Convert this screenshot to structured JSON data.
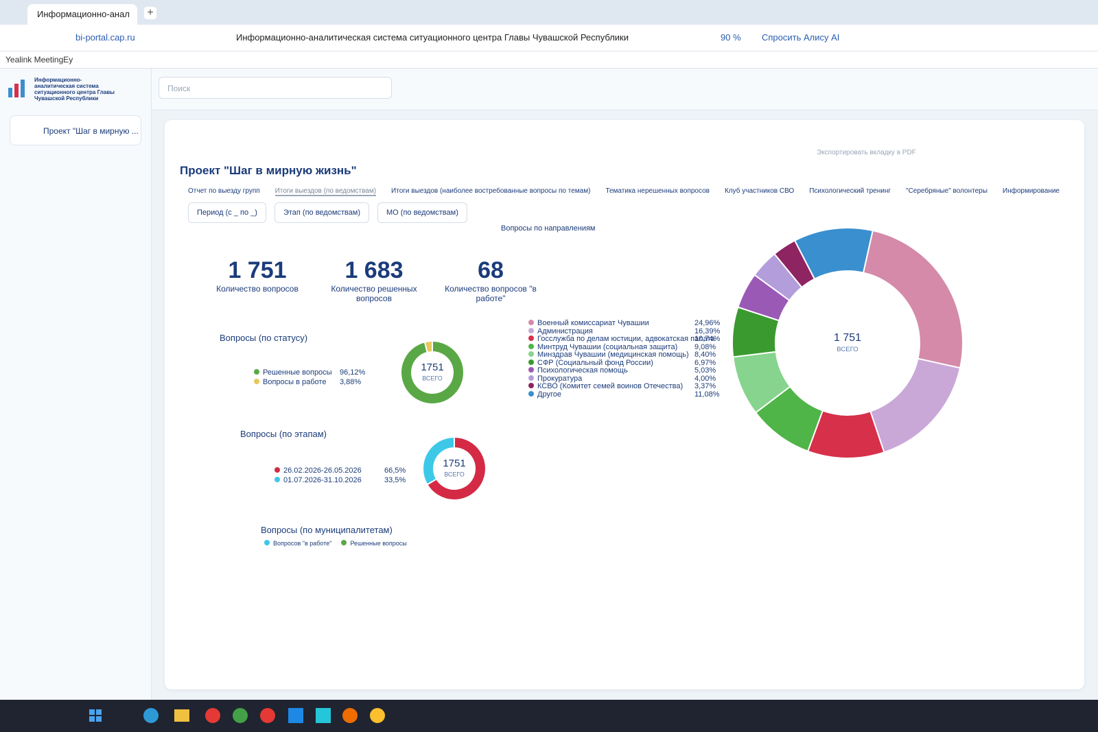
{
  "browser": {
    "tab_title": "Информационно-анал",
    "url": "bi-portal.cap.ru",
    "page_title": "Информационно-аналитическая система ситуационного центра Главы Чувашской Республики",
    "zoom": "90 %",
    "alice": "Спросить Алису AI",
    "bookmark": "Yealink MeetingEy"
  },
  "sidebar": {
    "logo_text": "Информационно-аналитическая система ситуационного центра Главы Чувашской Республики",
    "item": "Проект \"Шаг в мирную ..."
  },
  "search_placeholder": "Поиск",
  "dashboard": {
    "export": "Экспортировать вкладку в PDF",
    "title": "Проект \"Шаг в мирную жизнь\"",
    "tabs": [
      "Отчет по выезду групп",
      "Итоги выездов (по ведомствам)",
      "Итоги выездов (наиболее востребованные вопросы по темам)",
      "Тематика нерешенных вопросов",
      "Клуб участников СВО",
      "Психологический тренинг",
      "\"Серебряные\" волонтеры",
      "Информирование"
    ],
    "filters": [
      "Период (с _ по _)",
      "Этап (по ведомствам)",
      "МО (по ведомствам)"
    ],
    "kpis": [
      {
        "value": "1 751",
        "label": "Количество вопросов"
      },
      {
        "value": "1 683",
        "label": "Количество решенных вопросов"
      },
      {
        "value": "68",
        "label": "Количество вопросов \"в работе\""
      }
    ],
    "status": {
      "title": "Вопросы (по статусу)",
      "center_value": "1751",
      "center_label": "ВСЕГО",
      "items": [
        {
          "name": "Решенные вопросы",
          "value": 96.12,
          "label": "96,12%",
          "color": "#5aa845"
        },
        {
          "name": "Вопросы в работе",
          "value": 3.88,
          "label": "3,88%",
          "color": "#e6c85c"
        }
      ]
    },
    "stages": {
      "title": "Вопросы (по этапам)",
      "center_value": "1751",
      "center_label": "ВСЕГО",
      "items": [
        {
          "name": "26.02.2026-26.05.2026",
          "value": 66.5,
          "label": "66,5%",
          "color": "#d42a45"
        },
        {
          "name": "01.07.2026-31.10.2026",
          "value": 33.5,
          "label": "33,5%",
          "color": "#3ec8e8"
        }
      ]
    },
    "directions": {
      "title": "Вопросы по направлениям",
      "center_value": "1 751",
      "center_label": "ВСЕГО",
      "items": [
        {
          "name": "Военный комиссариат Чувашии",
          "value": 24.96,
          "label": "24,96%",
          "color": "#d48aa8"
        },
        {
          "name": "Администрация",
          "value": 16.39,
          "label": "16,39%",
          "color": "#c9a8d8"
        },
        {
          "name": "Госслужба по делам юстиции, адвокатская палата",
          "value": 10.74,
          "label": "10,74%",
          "color": "#d6304a"
        },
        {
          "name": "Минтруд Чувашии (социальная защита)",
          "value": 9.08,
          "label": "9,08%",
          "color": "#4fb548"
        },
        {
          "name": "Минздрав Чувашии (медицинская помощь)",
          "value": 8.4,
          "label": "8,40%",
          "color": "#86d48e"
        },
        {
          "name": "СФР (Социальный фонд России)",
          "value": 6.97,
          "label": "6,97%",
          "color": "#3a9a30"
        },
        {
          "name": "Психологическая помощь",
          "value": 5.03,
          "label": "5,03%",
          "color": "#9b59b6"
        },
        {
          "name": "Прокуратура",
          "value": 4.0,
          "label": "4,00%",
          "color": "#b39ddb"
        },
        {
          "name": "КСВО (Комитет семей воинов Отечества)",
          "value": 3.37,
          "label": "3,37%",
          "color": "#8e2461"
        },
        {
          "name": "Другое",
          "value": 11.08,
          "label": "11,08%",
          "color": "#3a8fcf"
        }
      ]
    },
    "municipalities": {
      "title": "Вопросы (по муниципалитетам)",
      "legend": [
        {
          "name": "Вопросов \"в работе\"",
          "color": "#3ec8e8"
        },
        {
          "name": "Решенные вопросы",
          "color": "#5aa845"
        }
      ]
    }
  }
}
